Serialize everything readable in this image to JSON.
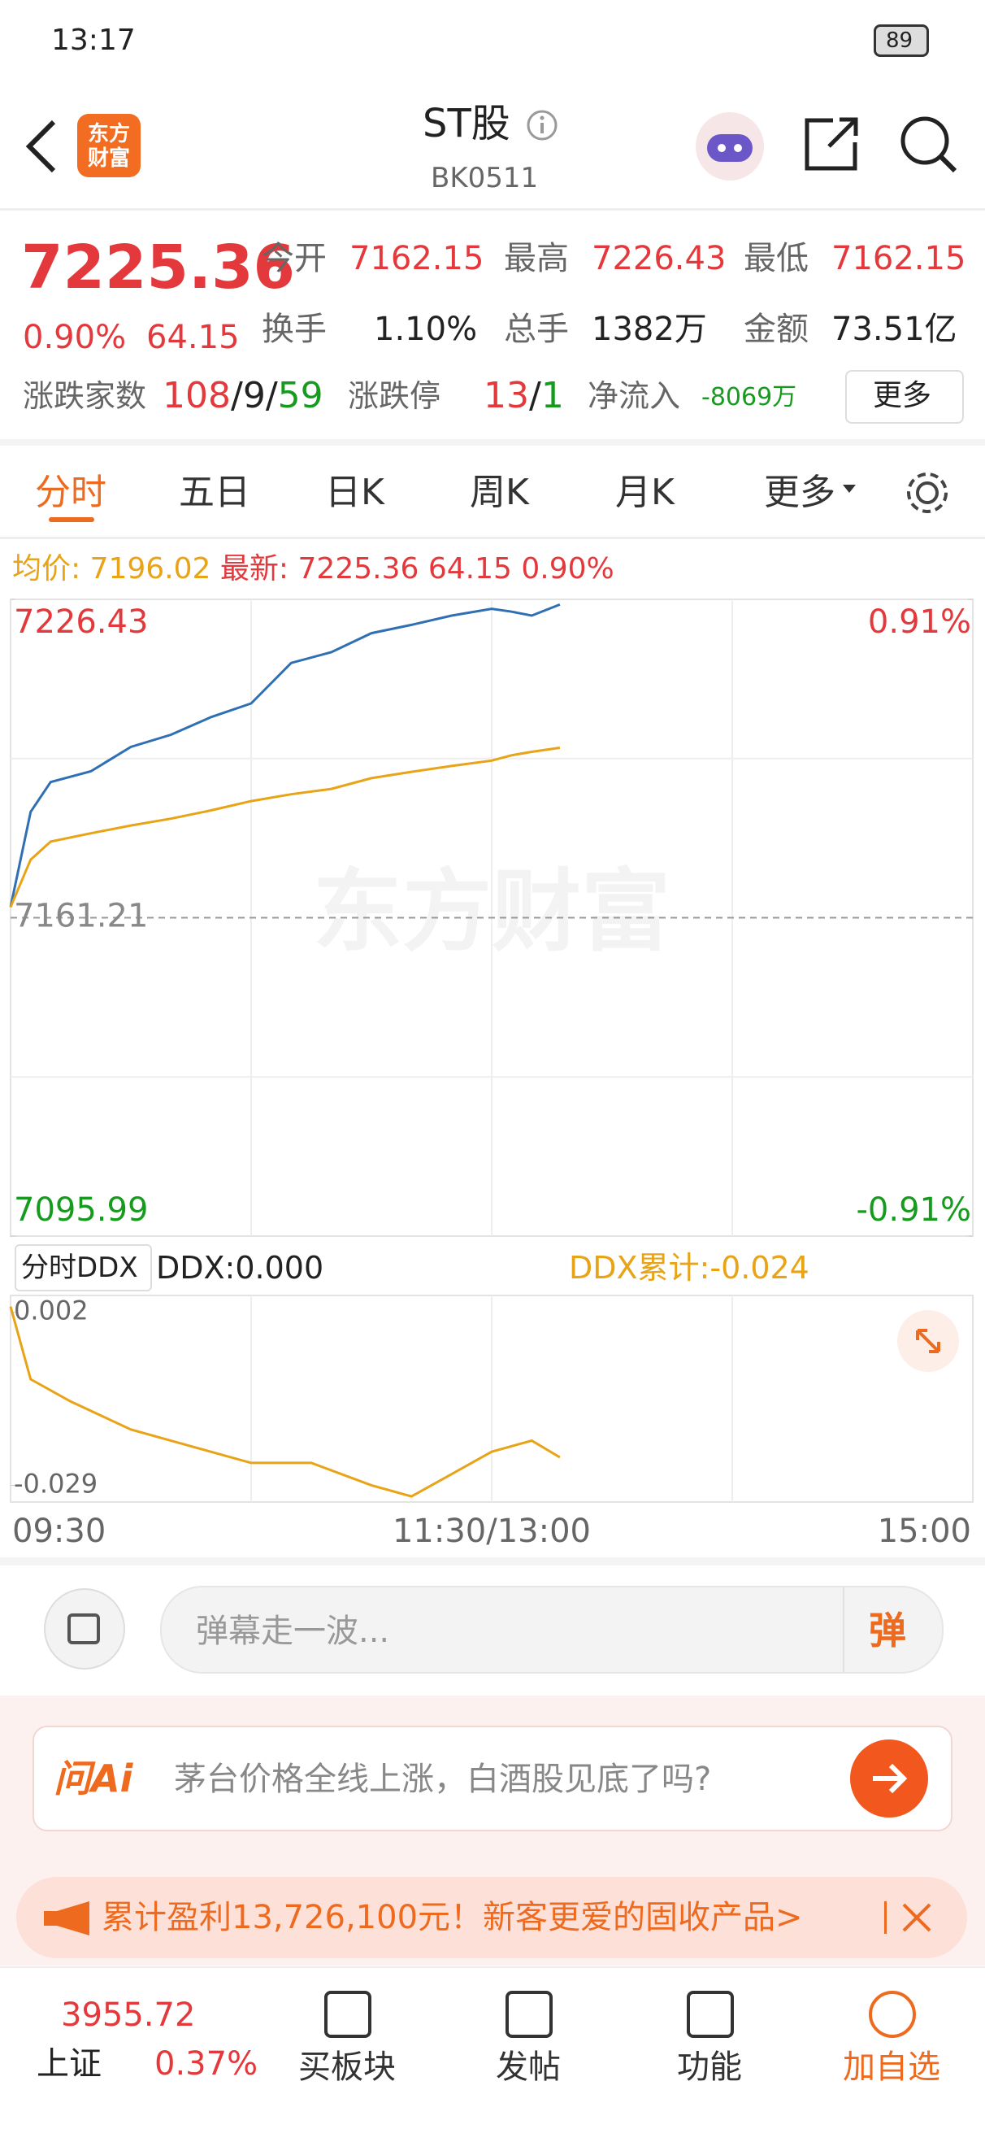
{
  "status_bar": {
    "time": "13:17",
    "battery": "89"
  },
  "header": {
    "logo": "东方财富",
    "title": "ST股",
    "code": "BK0511"
  },
  "quote": {
    "price": "7225.36",
    "change_pct": "0.90%",
    "change": "64.15",
    "stats": [
      {
        "label": "今开",
        "value": "7162.15"
      },
      {
        "label": "最高",
        "value": "7226.43"
      },
      {
        "label": "最低",
        "value": "7162.15"
      },
      {
        "label": "换手",
        "value": "1.10%"
      },
      {
        "label": "总手",
        "value": "1382万"
      },
      {
        "label": "金额",
        "value": "73.51亿"
      }
    ],
    "breadth": {
      "label": "涨跌家数",
      "up": "108",
      "flat": "9",
      "down": "59",
      "separator": "/"
    },
    "limit": {
      "label": "涨跌停",
      "up": "13",
      "down": "1"
    },
    "net_inflow": {
      "label": "净流入",
      "value": "-8069万"
    },
    "more": "更多"
  },
  "tabs": [
    "分时",
    "五日",
    "日K",
    "周K",
    "月K",
    "更多"
  ],
  "info": {
    "avg_label": "均价:",
    "avg": "7196.02",
    "last_label": "最新:",
    "last": "7225.36",
    "change": "64.15",
    "pct": "0.90%"
  },
  "ddx_header": {
    "selector": "分时DDX",
    "ddx": "DDX:0.000",
    "cum": "DDX累计:-0.024"
  },
  "chart_data": [
    {
      "type": "line",
      "x": [
        "09:30",
        "09:35",
        "09:40",
        "09:50",
        "10:00",
        "10:10",
        "10:20",
        "10:30",
        "10:40",
        "10:50",
        "11:00",
        "11:10",
        "11:20",
        "11:30",
        "13:05",
        "13:10",
        "13:17"
      ],
      "series": [
        {
          "name": "最新",
          "color": "#2f6fb3",
          "values": [
            7163.4,
            7182.9,
            7189,
            7191.2,
            7196.2,
            7198.7,
            7202.3,
            7205.1,
            7213.4,
            7215.6,
            7219.5,
            7221.2,
            7223.1,
            7224.5,
            7223.9,
            7223.1,
            7225.36
          ]
        },
        {
          "name": "均价",
          "color": "#e8a317",
          "values": [
            7163.4,
            7173.1,
            7176.8,
            7178.5,
            7180.1,
            7181.5,
            7183.2,
            7185.1,
            7186.5,
            7187.6,
            7189.8,
            7191.1,
            7192.3,
            7193.4,
            7194.5,
            7195.2,
            7196.02
          ]
        }
      ],
      "ylim": [
        7095.99,
        7226.43
      ],
      "yticks": [
        7226.43,
        7161.21,
        7095.99
      ],
      "y2lim": [
        -0.91,
        0.91
      ],
      "y2ticks": [
        {
          "value": 0.91,
          "label": "0.91%"
        },
        {
          "value": -0.91,
          "label": "-0.91%"
        }
      ],
      "x_labels": [
        "09:30",
        "11:30/13:00",
        "15:00"
      ],
      "watermark": "东方财富"
    },
    {
      "type": "line",
      "x": [
        "09:30",
        "09:35",
        "09:45",
        "10:00",
        "10:15",
        "10:30",
        "10:45",
        "11:00",
        "11:10",
        "11:20",
        "11:30",
        "13:10",
        "13:17"
      ],
      "series": [
        {
          "name": "DDX累计",
          "color": "#e8a317",
          "values": [
            0.003,
            -0.01,
            -0.014,
            -0.019,
            -0.022,
            -0.025,
            -0.025,
            -0.029,
            -0.031,
            -0.027,
            -0.023,
            -0.021,
            -0.024
          ]
        }
      ],
      "ylim": [
        -0.032,
        0.005
      ],
      "yticks": [
        0.002,
        -0.029
      ]
    }
  ],
  "comment": {
    "placeholder": "弹幕走一波...",
    "button": "弹"
  },
  "ai": {
    "brand": "问Ai",
    "question": "茅台价格全线上涨，白酒股见底了吗?"
  },
  "banner": {
    "text": "累计盈利13,726,100元！新客更爱的固收产品>"
  },
  "nav": {
    "index_value": "3955.72",
    "index_name": "上证",
    "index_pct": "0.37%",
    "items": [
      "买板块",
      "发帖",
      "功能",
      "加自选"
    ]
  }
}
